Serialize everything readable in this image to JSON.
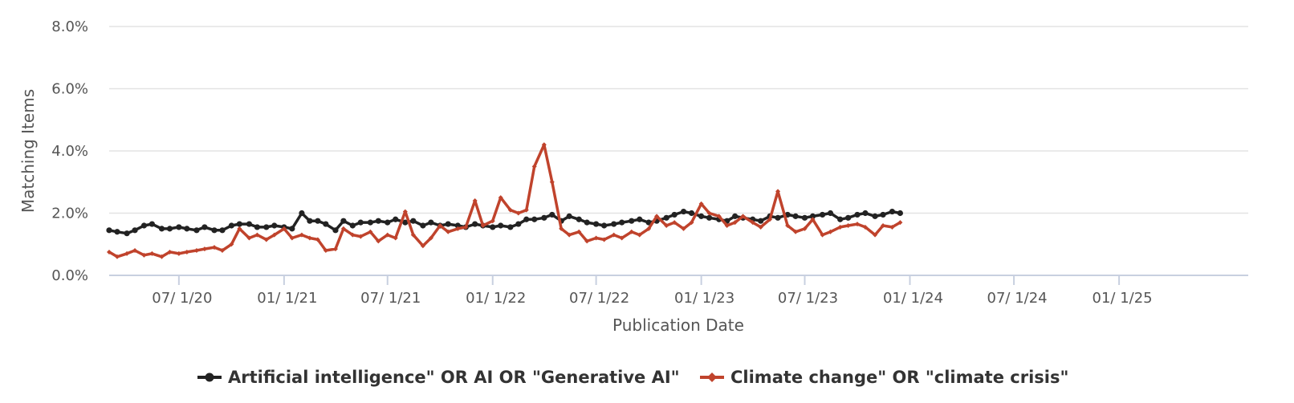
{
  "chart_data": {
    "type": "line",
    "title": "",
    "xlabel": "Publication Date",
    "ylabel": "Matching Items",
    "x_range": [
      "2020-03-01",
      "2025-08-15"
    ],
    "ylim": [
      0,
      8
    ],
    "y_ticks": [
      0,
      2,
      4,
      6,
      8
    ],
    "y_tick_labels": [
      "0.0%",
      "2.0%",
      "4.0%",
      "6.0%",
      "8.0%"
    ],
    "x_ticks": [
      "2020-07-01",
      "2021-01-01",
      "2021-07-01",
      "2022-01-01",
      "2022-07-01",
      "2023-01-01",
      "2023-07-01",
      "2024-01-01",
      "2024-07-01",
      "2025-01-01"
    ],
    "x_tick_labels": [
      "07/ 1/20",
      "01/ 1/21",
      "07/ 1/21",
      "01/ 1/22",
      "07/ 1/22",
      "01/ 1/23",
      "07/ 1/23",
      "01/ 1/24",
      "07/ 1/24",
      "01/ 1/25"
    ],
    "grid": true,
    "legend_position": "bottom",
    "series": [
      {
        "name": "Artificial intelligence\" OR AI OR \"Generative AI\"",
        "color": "#222222",
        "marker": "circle",
        "points": [
          [
            "2020-03-01",
            1.45
          ],
          [
            "2020-03-15",
            1.4
          ],
          [
            "2020-04-01",
            1.35
          ],
          [
            "2020-04-15",
            1.45
          ],
          [
            "2020-05-01",
            1.6
          ],
          [
            "2020-05-15",
            1.65
          ],
          [
            "2020-06-01",
            1.5
          ],
          [
            "2020-06-15",
            1.5
          ],
          [
            "2020-07-01",
            1.55
          ],
          [
            "2020-07-15",
            1.5
          ],
          [
            "2020-08-01",
            1.45
          ],
          [
            "2020-08-15",
            1.55
          ],
          [
            "2020-09-01",
            1.45
          ],
          [
            "2020-09-15",
            1.45
          ],
          [
            "2020-10-01",
            1.6
          ],
          [
            "2020-10-15",
            1.65
          ],
          [
            "2020-11-01",
            1.65
          ],
          [
            "2020-11-15",
            1.55
          ],
          [
            "2020-12-01",
            1.55
          ],
          [
            "2020-12-15",
            1.6
          ],
          [
            "2021-01-01",
            1.55
          ],
          [
            "2021-01-15",
            1.5
          ],
          [
            "2021-02-01",
            2.0
          ],
          [
            "2021-02-15",
            1.75
          ],
          [
            "2021-03-01",
            1.75
          ],
          [
            "2021-03-15",
            1.65
          ],
          [
            "2021-04-01",
            1.45
          ],
          [
            "2021-04-15",
            1.75
          ],
          [
            "2021-05-01",
            1.6
          ],
          [
            "2021-05-15",
            1.7
          ],
          [
            "2021-06-01",
            1.7
          ],
          [
            "2021-06-15",
            1.75
          ],
          [
            "2021-07-01",
            1.7
          ],
          [
            "2021-07-15",
            1.8
          ],
          [
            "2021-08-01",
            1.7
          ],
          [
            "2021-08-15",
            1.75
          ],
          [
            "2021-09-01",
            1.6
          ],
          [
            "2021-09-15",
            1.7
          ],
          [
            "2021-10-01",
            1.6
          ],
          [
            "2021-10-15",
            1.65
          ],
          [
            "2021-11-01",
            1.6
          ],
          [
            "2021-11-15",
            1.55
          ],
          [
            "2021-12-01",
            1.65
          ],
          [
            "2021-12-15",
            1.6
          ],
          [
            "2022-01-01",
            1.55
          ],
          [
            "2022-01-15",
            1.6
          ],
          [
            "2022-02-01",
            1.55
          ],
          [
            "2022-02-15",
            1.65
          ],
          [
            "2022-03-01",
            1.8
          ],
          [
            "2022-03-15",
            1.8
          ],
          [
            "2022-04-01",
            1.85
          ],
          [
            "2022-04-15",
            1.95
          ],
          [
            "2022-05-01",
            1.75
          ],
          [
            "2022-05-15",
            1.9
          ],
          [
            "2022-06-01",
            1.8
          ],
          [
            "2022-06-15",
            1.7
          ],
          [
            "2022-07-01",
            1.65
          ],
          [
            "2022-07-15",
            1.6
          ],
          [
            "2022-08-01",
            1.65
          ],
          [
            "2022-08-15",
            1.7
          ],
          [
            "2022-09-01",
            1.75
          ],
          [
            "2022-09-15",
            1.8
          ],
          [
            "2022-10-01",
            1.7
          ],
          [
            "2022-10-15",
            1.75
          ],
          [
            "2022-11-01",
            1.85
          ],
          [
            "2022-11-15",
            1.95
          ],
          [
            "2022-12-01",
            2.05
          ],
          [
            "2022-12-15",
            2.0
          ],
          [
            "2023-01-01",
            1.9
          ],
          [
            "2023-01-15",
            1.85
          ],
          [
            "2023-02-01",
            1.8
          ],
          [
            "2023-02-15",
            1.75
          ],
          [
            "2023-03-01",
            1.9
          ],
          [
            "2023-03-15",
            1.85
          ],
          [
            "2023-04-01",
            1.8
          ],
          [
            "2023-04-15",
            1.75
          ],
          [
            "2023-05-01",
            1.9
          ],
          [
            "2023-05-15",
            1.85
          ],
          [
            "2023-06-01",
            1.95
          ],
          [
            "2023-06-15",
            1.9
          ],
          [
            "2023-07-01",
            1.85
          ],
          [
            "2023-07-15",
            1.9
          ],
          [
            "2023-08-01",
            1.95
          ],
          [
            "2023-08-15",
            2.0
          ],
          [
            "2023-09-01",
            1.8
          ],
          [
            "2023-09-15",
            1.85
          ],
          [
            "2023-10-01",
            1.95
          ],
          [
            "2023-10-15",
            2.0
          ],
          [
            "2023-11-01",
            1.9
          ],
          [
            "2023-11-15",
            1.95
          ],
          [
            "2023-12-01",
            2.05
          ],
          [
            "2023-12-15",
            2.0
          ]
        ]
      },
      {
        "name": "Climate change\" OR \"climate crisis\"",
        "color": "#c0432c",
        "marker": "diamond",
        "points": [
          [
            "2020-03-01",
            0.75
          ],
          [
            "2020-03-15",
            0.6
          ],
          [
            "2020-04-01",
            0.7
          ],
          [
            "2020-04-15",
            0.8
          ],
          [
            "2020-05-01",
            0.65
          ],
          [
            "2020-05-15",
            0.7
          ],
          [
            "2020-06-01",
            0.6
          ],
          [
            "2020-06-15",
            0.75
          ],
          [
            "2020-07-01",
            0.7
          ],
          [
            "2020-07-15",
            0.75
          ],
          [
            "2020-08-01",
            0.8
          ],
          [
            "2020-08-15",
            0.85
          ],
          [
            "2020-09-01",
            0.9
          ],
          [
            "2020-09-15",
            0.8
          ],
          [
            "2020-10-01",
            1.0
          ],
          [
            "2020-10-15",
            1.5
          ],
          [
            "2020-11-01",
            1.2
          ],
          [
            "2020-11-15",
            1.3
          ],
          [
            "2020-12-01",
            1.15
          ],
          [
            "2020-12-15",
            1.3
          ],
          [
            "2021-01-01",
            1.5
          ],
          [
            "2021-01-15",
            1.2
          ],
          [
            "2021-02-01",
            1.3
          ],
          [
            "2021-02-15",
            1.2
          ],
          [
            "2021-03-01",
            1.15
          ],
          [
            "2021-03-15",
            0.8
          ],
          [
            "2021-04-01",
            0.85
          ],
          [
            "2021-04-15",
            1.5
          ],
          [
            "2021-05-01",
            1.3
          ],
          [
            "2021-05-15",
            1.25
          ],
          [
            "2021-06-01",
            1.4
          ],
          [
            "2021-06-15",
            1.1
          ],
          [
            "2021-07-01",
            1.3
          ],
          [
            "2021-07-15",
            1.2
          ],
          [
            "2021-08-01",
            2.05
          ],
          [
            "2021-08-15",
            1.3
          ],
          [
            "2021-09-01",
            0.95
          ],
          [
            "2021-09-15",
            1.2
          ],
          [
            "2021-10-01",
            1.6
          ],
          [
            "2021-10-15",
            1.4
          ],
          [
            "2021-11-01",
            1.5
          ],
          [
            "2021-11-15",
            1.55
          ],
          [
            "2021-12-01",
            2.4
          ],
          [
            "2021-12-15",
            1.6
          ],
          [
            "2022-01-01",
            1.75
          ],
          [
            "2022-01-15",
            2.5
          ],
          [
            "2022-02-01",
            2.1
          ],
          [
            "2022-02-15",
            2.0
          ],
          [
            "2022-03-01",
            2.1
          ],
          [
            "2022-03-15",
            3.5
          ],
          [
            "2022-04-01",
            4.2
          ],
          [
            "2022-04-15",
            3.0
          ],
          [
            "2022-05-01",
            1.5
          ],
          [
            "2022-05-15",
            1.3
          ],
          [
            "2022-06-01",
            1.4
          ],
          [
            "2022-06-15",
            1.1
          ],
          [
            "2022-07-01",
            1.2
          ],
          [
            "2022-07-15",
            1.15
          ],
          [
            "2022-08-01",
            1.3
          ],
          [
            "2022-08-15",
            1.2
          ],
          [
            "2022-09-01",
            1.4
          ],
          [
            "2022-09-15",
            1.3
          ],
          [
            "2022-10-01",
            1.5
          ],
          [
            "2022-10-15",
            1.9
          ],
          [
            "2022-11-01",
            1.6
          ],
          [
            "2022-11-15",
            1.7
          ],
          [
            "2022-12-01",
            1.5
          ],
          [
            "2022-12-15",
            1.7
          ],
          [
            "2023-01-01",
            2.3
          ],
          [
            "2023-01-15",
            2.0
          ],
          [
            "2023-02-01",
            1.9
          ],
          [
            "2023-02-15",
            1.6
          ],
          [
            "2023-03-01",
            1.7
          ],
          [
            "2023-03-15",
            1.9
          ],
          [
            "2023-04-01",
            1.7
          ],
          [
            "2023-04-15",
            1.55
          ],
          [
            "2023-05-01",
            1.8
          ],
          [
            "2023-05-15",
            2.7
          ],
          [
            "2023-06-01",
            1.6
          ],
          [
            "2023-06-15",
            1.4
          ],
          [
            "2023-07-01",
            1.5
          ],
          [
            "2023-07-15",
            1.8
          ],
          [
            "2023-08-01",
            1.3
          ],
          [
            "2023-08-15",
            1.4
          ],
          [
            "2023-09-01",
            1.55
          ],
          [
            "2023-09-15",
            1.6
          ],
          [
            "2023-10-01",
            1.65
          ],
          [
            "2023-10-15",
            1.55
          ],
          [
            "2023-11-01",
            1.3
          ],
          [
            "2023-11-15",
            1.6
          ],
          [
            "2023-12-01",
            1.55
          ],
          [
            "2023-12-15",
            1.7
          ]
        ]
      }
    ]
  }
}
